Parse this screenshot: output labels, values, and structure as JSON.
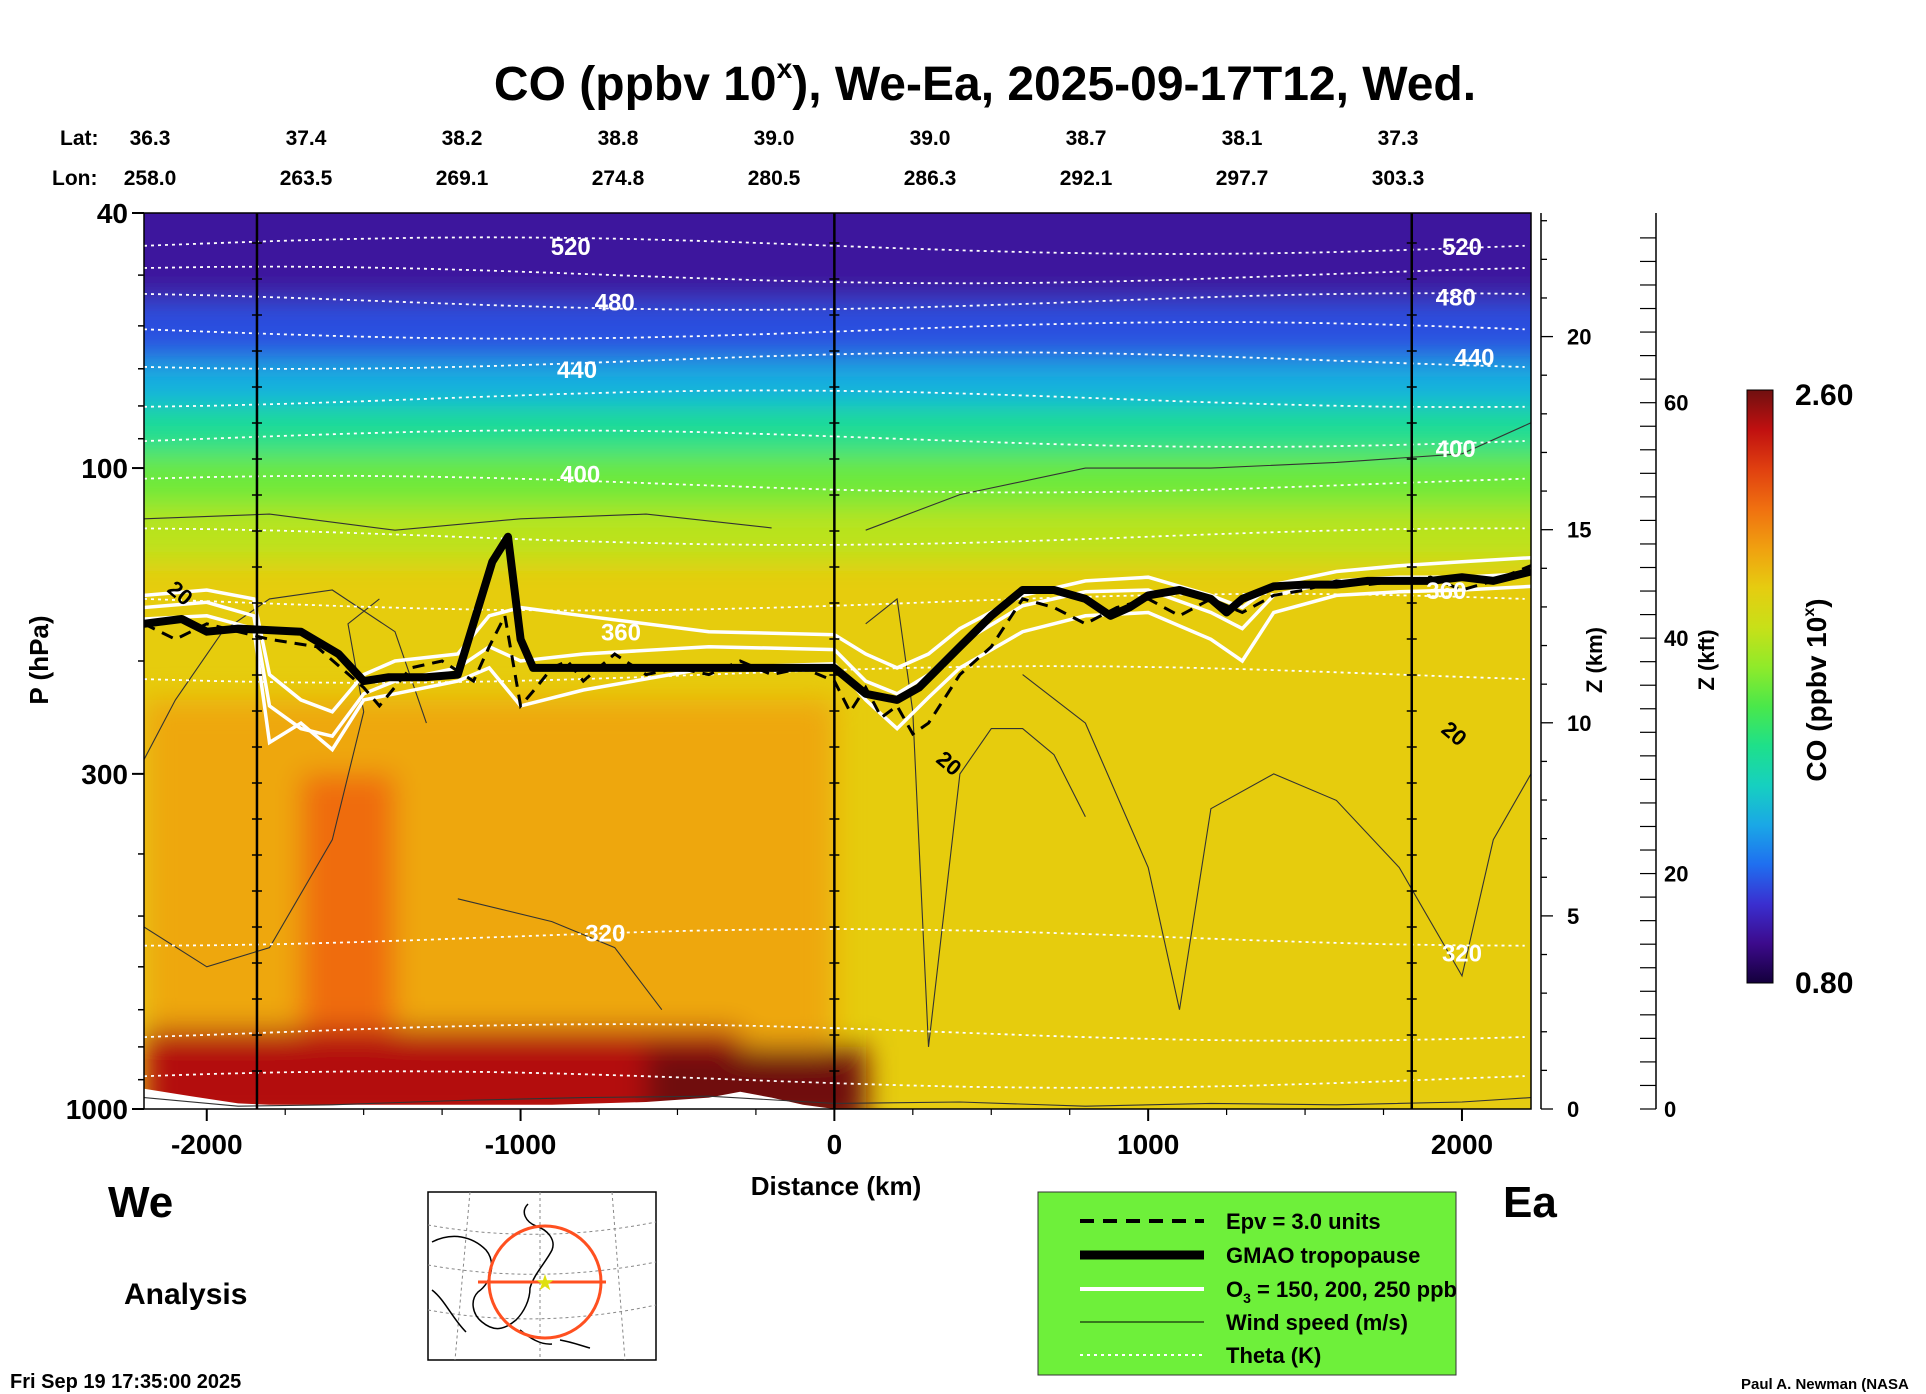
{
  "title_main": "CO (ppbv 10",
  "title_sup": "x",
  "title_rest": "), We-Ea, 2025-09-17T12, Wed.",
  "lat_label": "Lat:",
  "lon_label": "Lon:",
  "lats": [
    "36.3",
    "37.4",
    "38.2",
    "38.8",
    "39.0",
    "39.0",
    "38.7",
    "38.1",
    "37.3"
  ],
  "lons": [
    "258.0",
    "263.5",
    "269.1",
    "274.8",
    "280.5",
    "286.3",
    "292.1",
    "297.7",
    "303.3"
  ],
  "left_end": "We",
  "right_end": "Ea",
  "analysis_label": "Analysis",
  "timestamp": "Fri Sep 19 17:35:00 2025",
  "credit": "Paul A. Newman (NASA",
  "z_km_label": "Z (km)",
  "z_kft_label": "Z (kft)",
  "colorbar": {
    "label_main": "CO (ppbv 10",
    "label_sup": "x",
    "label_rest": ")",
    "max_label": "2.60",
    "min_label": "0.80",
    "min": 0.8,
    "max": 2.6,
    "colors": [
      "#14003c",
      "#3c0a8c",
      "#3a2fd0",
      "#1f6ff0",
      "#1aa8e6",
      "#16d0c0",
      "#1ee08a",
      "#4ae84a",
      "#90ea2a",
      "#c8e018",
      "#e6cc10",
      "#f0a010",
      "#f07010",
      "#e04010",
      "#c01010",
      "#701010"
    ]
  },
  "legend": {
    "bg": "#6ef03a",
    "items": [
      {
        "label": "Epv = 3.0 units"
      },
      {
        "label": "GMAO tropopause"
      },
      {
        "label_a": "O",
        "label_sub": "3",
        "label_b": " = 150, 200, 250 ppb"
      },
      {
        "label": "Wind speed (m/s)"
      },
      {
        "label": "Theta (K)"
      }
    ]
  },
  "chart_data": {
    "type": "heatmap",
    "title": "CO (ppbv 10^x), We-Ea, 2025-09-17T12, Wed.",
    "xlabel": "Distance (km)",
    "ylabel": "P (hPa)",
    "xlim": [
      -2200,
      2220
    ],
    "ylim": [
      1000,
      40
    ],
    "y_scale": "log",
    "x_ticks": [
      -2000,
      -1000,
      0,
      1000,
      2000
    ],
    "y_tick_labels": [
      {
        "v": 40,
        "t": "40"
      },
      {
        "v": 100,
        "t": "100"
      },
      {
        "v": 300,
        "t": "300"
      },
      {
        "v": 1000,
        "t": "1000"
      }
    ],
    "z_km_ticks": [
      0,
      5,
      10,
      15,
      20
    ],
    "z_kft_ticks": [
      0,
      20,
      40,
      60
    ],
    "vertical_guides_km": [
      -1840,
      0,
      1840
    ],
    "co_field_layers": [
      {
        "p_top": 40,
        "p_bot": 55,
        "value": 0.95
      },
      {
        "p_top": 55,
        "p_bot": 68,
        "value": 1.1
      },
      {
        "p_top": 68,
        "p_bot": 80,
        "value": 1.3
      },
      {
        "p_top": 80,
        "p_bot": 95,
        "value": 1.5
      },
      {
        "p_top": 95,
        "p_bot": 115,
        "value": 1.7
      },
      {
        "p_top": 115,
        "p_bot": 140,
        "value": 1.85
      },
      {
        "p_top": 140,
        "p_bot": 1000,
        "value": 2.0
      }
    ],
    "co_high_regions": [
      {
        "x": [
          -2200,
          0
        ],
        "p": [
          230,
          1000
        ],
        "value": 2.1
      },
      {
        "x": [
          -1700,
          -1400
        ],
        "p": [
          300,
          1000
        ],
        "value": 2.25
      },
      {
        "x": [
          -2200,
          -300
        ],
        "p": [
          750,
          1000
        ],
        "value": 2.5
      },
      {
        "x": [
          -600,
          100
        ],
        "p": [
          800,
          1000
        ],
        "value": 2.6
      }
    ],
    "theta_labels": [
      {
        "x": -840,
        "p": 45,
        "text": "520"
      },
      {
        "x": -700,
        "p": 55,
        "text": "480"
      },
      {
        "x": -820,
        "p": 70,
        "text": "440"
      },
      {
        "x": -810,
        "p": 102,
        "text": "400"
      },
      {
        "x": -680,
        "p": 180,
        "text": "360"
      },
      {
        "x": -730,
        "p": 530,
        "text": "320"
      },
      {
        "x": 2000,
        "p": 45,
        "text": "520"
      },
      {
        "x": 1980,
        "p": 54,
        "text": "480"
      },
      {
        "x": 2040,
        "p": 67,
        "text": "440"
      },
      {
        "x": 1980,
        "p": 93,
        "text": "400"
      },
      {
        "x": 1950,
        "p": 155,
        "text": "360"
      },
      {
        "x": 2000,
        "p": 570,
        "text": "320"
      }
    ],
    "theta_levels_p": [
      45,
      50,
      55,
      61,
      68,
      78,
      90,
      106,
      128,
      162,
      210,
      540,
      760,
      900
    ],
    "wind_labels": [
      {
        "x": -2100,
        "p": 160,
        "text": "20"
      },
      {
        "x": 350,
        "p": 295,
        "text": "20"
      },
      {
        "x": 1960,
        "p": 265,
        "text": "20"
      }
    ],
    "tropopause": {
      "x": [
        -2200,
        -2080,
        -2000,
        -1900,
        -1700,
        -1580,
        -1500,
        -1420,
        -1300,
        -1200,
        -1090,
        -1040,
        -1000,
        -960,
        -900,
        -800,
        -600,
        -400,
        -200,
        0,
        100,
        200,
        270,
        400,
        500,
        600,
        700,
        800,
        880,
        940,
        1000,
        1100,
        1200,
        1250,
        1300,
        1400,
        1500,
        1600,
        1700,
        1800,
        1900,
        2000,
        2100,
        2220
      ],
      "p": [
        175,
        172,
        180,
        178,
        180,
        195,
        215,
        212,
        212,
        210,
        140,
        128,
        185,
        205,
        205,
        205,
        205,
        205,
        205,
        205,
        225,
        230,
        220,
        190,
        170,
        155,
        155,
        160,
        170,
        165,
        158,
        155,
        160,
        168,
        160,
        153,
        152,
        152,
        150,
        150,
        150,
        148,
        150,
        145
      ]
    },
    "epv": {
      "x": [
        -2200,
        -2100,
        -2000,
        -1900,
        -1800,
        -1650,
        -1500,
        -1450,
        -1350,
        -1250,
        -1150,
        -1100,
        -1050,
        -1000,
        -950,
        -900,
        -850,
        -800,
        -700,
        -600,
        -500,
        -400,
        -300,
        -200,
        -100,
        0,
        50,
        100,
        150,
        200,
        250,
        300,
        400,
        500,
        600,
        700,
        800,
        900,
        1000,
        1100,
        1200,
        1300,
        1400,
        1500,
        1600,
        1700,
        1800,
        1900,
        2000,
        2100,
        2220
      ],
      "p": [
        175,
        185,
        175,
        180,
        185,
        190,
        220,
        235,
        205,
        200,
        215,
        190,
        170,
        235,
        220,
        205,
        200,
        215,
        195,
        210,
        205,
        210,
        200,
        210,
        205,
        215,
        240,
        220,
        245,
        235,
        260,
        250,
        210,
        190,
        160,
        165,
        175,
        165,
        160,
        170,
        160,
        168,
        158,
        155,
        150,
        152,
        150,
        148,
        155,
        150,
        142
      ]
    },
    "o3_contours": [
      {
        "x": [
          -2200,
          -2000,
          -1850,
          -1800,
          -1700,
          -1600,
          -1500,
          -1400,
          -1200,
          -1100,
          -1000,
          -800,
          -400,
          0,
          100,
          200,
          300,
          400,
          600,
          800,
          1000,
          1200,
          1300,
          1400,
          1600,
          1800,
          2000,
          2220
        ],
        "p": [
          158,
          155,
          160,
          210,
          230,
          240,
          210,
          200,
          195,
          170,
          165,
          170,
          180,
          182,
          195,
          205,
          195,
          178,
          158,
          150,
          148,
          158,
          165,
          152,
          145,
          142,
          140,
          138
        ]
      },
      {
        "x": [
          -2200,
          -2000,
          -1850,
          -1800,
          -1700,
          -1600,
          -1500,
          -1400,
          -1200,
          -1100,
          -1000,
          -800,
          -400,
          0,
          100,
          200,
          300,
          400,
          600,
          800,
          1000,
          1200,
          1300,
          1400,
          1600,
          1800,
          2000,
          2220
        ],
        "p": [
          165,
          162,
          170,
          235,
          255,
          262,
          225,
          215,
          205,
          190,
          200,
          195,
          190,
          192,
          215,
          225,
          210,
          188,
          164,
          156,
          155,
          168,
          178,
          158,
          150,
          148,
          148,
          146
        ]
      },
      {
        "x": [
          -2200,
          -2000,
          -1850,
          -1800,
          -1700,
          -1600,
          -1500,
          -1400,
          -1200,
          -1100,
          -1000,
          -800,
          -400,
          0,
          100,
          200,
          300,
          400,
          600,
          800,
          1000,
          1200,
          1300,
          1400,
          1600,
          1800,
          2000,
          2220
        ],
        "p": [
          172,
          170,
          178,
          268,
          250,
          275,
          230,
          225,
          215,
          205,
          235,
          222,
          205,
          202,
          230,
          255,
          228,
          205,
          180,
          170,
          168,
          185,
          200,
          168,
          158,
          156,
          155,
          153
        ]
      }
    ],
    "wind_contours": [
      {
        "x": [
          -2200,
          -2100,
          -1950,
          -1800,
          -1600,
          -1400,
          -1300
        ],
        "p": [
          285,
          230,
          180,
          160,
          155,
          180,
          250
        ]
      },
      {
        "x": [
          -2200,
          -2000,
          -1800,
          -1600,
          -1500,
          -1550,
          -1450
        ],
        "p": [
          520,
          600,
          560,
          380,
          240,
          175,
          160
        ]
      },
      {
        "x": [
          -2200,
          -1800,
          -1400,
          -1000,
          -600,
          -200
        ],
        "p": [
          120,
          118,
          125,
          120,
          118,
          124
        ]
      },
      {
        "x": [
          100,
          200,
          250,
          300,
          400,
          500,
          600,
          700,
          800
        ],
        "p": [
          175,
          160,
          240,
          800,
          300,
          255,
          255,
          280,
          350
        ]
      },
      {
        "x": [
          600,
          800,
          1000,
          1100,
          1200,
          1400,
          1600,
          1800,
          2000,
          2100,
          2220
        ],
        "p": [
          210,
          250,
          420,
          700,
          340,
          300,
          330,
          420,
          620,
          380,
          300
        ]
      },
      {
        "x": [
          100,
          400,
          800,
          1200,
          1600,
          2000,
          2220
        ],
        "p": [
          125,
          110,
          100,
          100,
          98,
          95,
          85
        ]
      },
      {
        "x": [
          -1200,
          -900,
          -700,
          -550
        ],
        "p": [
          470,
          510,
          560,
          700
        ]
      },
      {
        "x": [
          -2200,
          -1900,
          -1600,
          -1200,
          -800,
          -400,
          0,
          400,
          800,
          1200,
          1600,
          2000,
          2220
        ],
        "p": [
          960,
          990,
          985,
          970,
          960,
          955,
          980,
          975,
          990,
          980,
          985,
          975,
          960
        ]
      }
    ],
    "surface_gap": {
      "x": [
        -2200,
        -2050,
        -1900,
        -1800,
        -1500,
        -1200,
        -900,
        -600,
        -400,
        -300,
        -200,
        -100,
        0
      ],
      "p": [
        930,
        955,
        980,
        985,
        985,
        985,
        985,
        975,
        960,
        940,
        960,
        985,
        1000
      ]
    }
  }
}
